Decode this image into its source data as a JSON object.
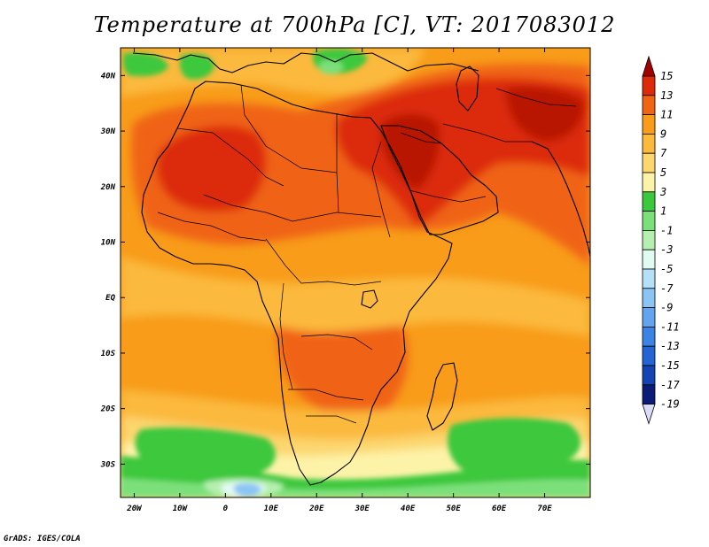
{
  "title": "Temperature at 700hPa [C], VT: 2017083012",
  "credit": "GrADS: IGES/COLA",
  "map": {
    "region": "Africa, Arabia and western Asia",
    "projection": "latitude-longitude",
    "lon_range": [
      -23,
      80
    ],
    "lat_range": [
      -36,
      45
    ],
    "lon_ticks": [
      {
        "value": -20,
        "label": "20W"
      },
      {
        "value": -10,
        "label": "10W"
      },
      {
        "value": 0,
        "label": "0"
      },
      {
        "value": 10,
        "label": "10E"
      },
      {
        "value": 20,
        "label": "20E"
      },
      {
        "value": 30,
        "label": "30E"
      },
      {
        "value": 40,
        "label": "40E"
      },
      {
        "value": 50,
        "label": "50E"
      },
      {
        "value": 60,
        "label": "60E"
      },
      {
        "value": 70,
        "label": "70E"
      }
    ],
    "lat_ticks": [
      {
        "value": 40,
        "label": "40N"
      },
      {
        "value": 30,
        "label": "30N"
      },
      {
        "value": 20,
        "label": "20N"
      },
      {
        "value": 10,
        "label": "10N"
      },
      {
        "value": 0,
        "label": "EQ"
      },
      {
        "value": -10,
        "label": "10S"
      },
      {
        "value": -20,
        "label": "20S"
      },
      {
        "value": -30,
        "label": "30S"
      }
    ]
  },
  "colorbar": {
    "labels": [
      "15",
      "13",
      "11",
      "9",
      "7",
      "5",
      "3",
      "1",
      "-1",
      "-3",
      "-5",
      "-7",
      "-9",
      "-11",
      "-13",
      "-15",
      "-17",
      "-19"
    ],
    "colors": {
      "t15": "#a50000",
      "t13": "#dc2a0a",
      "t11": "#f06414",
      "t9": "#f89c1a",
      "t7": "#fbb93e",
      "t5": "#fcd66e",
      "t3": "#fdf3a8",
      "t1": "#3cc83c",
      "tm1": "#7ce07a",
      "tm3": "#b6f0b0",
      "tm5": "#e2fbf2",
      "tm7": "#b4e0f8",
      "tm9": "#8cc4f4",
      "tm11": "#64a4ee",
      "tm13": "#3c84e4",
      "tm15": "#2464d4",
      "tm17": "#1444b4",
      "tm19": "#0a1c78",
      "below": "#dcdcf8"
    }
  }
}
